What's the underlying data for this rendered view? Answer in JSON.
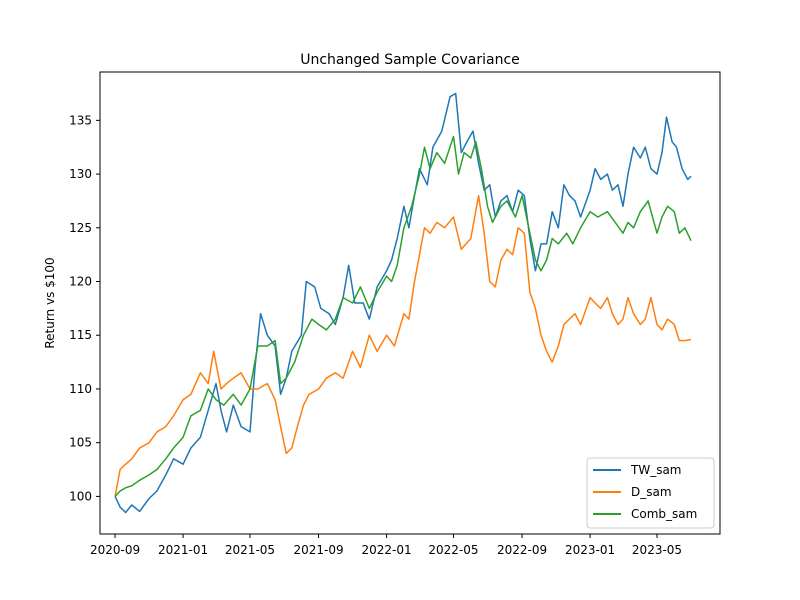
{
  "chart_data": {
    "type": "line",
    "title": "Unchanged Sample Covariance",
    "xlabel": "",
    "ylabel": "Return vs $100",
    "xlim": [
      "2020-08-05",
      "2023-08-22"
    ],
    "ylim": [
      96.5,
      139.5
    ],
    "x_ticks": [
      "2020-09",
      "2021-01",
      "2021-05",
      "2021-09",
      "2022-01",
      "2022-05",
      "2022-09",
      "2023-01",
      "2023-05"
    ],
    "y_ticks": [
      100,
      105,
      110,
      115,
      120,
      125,
      130,
      135
    ],
    "grid": false,
    "legend_position": "lower-right",
    "series": [
      {
        "name": "TW_sam",
        "color": "#1f77b4",
        "points": [
          [
            "2020-09-01",
            100.0
          ],
          [
            "2020-09-10",
            99.0
          ],
          [
            "2020-09-20",
            98.5
          ],
          [
            "2020-10-01",
            99.2
          ],
          [
            "2020-10-15",
            98.6
          ],
          [
            "2020-11-01",
            99.8
          ],
          [
            "2020-11-15",
            100.5
          ],
          [
            "2020-12-01",
            102.0
          ],
          [
            "2020-12-15",
            103.5
          ],
          [
            "2021-01-01",
            103.0
          ],
          [
            "2021-01-15",
            104.5
          ],
          [
            "2021-02-01",
            105.5
          ],
          [
            "2021-02-15",
            108.0
          ],
          [
            "2021-03-01",
            110.5
          ],
          [
            "2021-03-10",
            108.0
          ],
          [
            "2021-03-20",
            106.0
          ],
          [
            "2021-04-01",
            108.5
          ],
          [
            "2021-04-15",
            106.5
          ],
          [
            "2021-05-01",
            106.0
          ],
          [
            "2021-05-10",
            112.0
          ],
          [
            "2021-05-20",
            117.0
          ],
          [
            "2021-06-01",
            115.0
          ],
          [
            "2021-06-15",
            114.0
          ],
          [
            "2021-06-25",
            109.5
          ],
          [
            "2021-07-05",
            111.0
          ],
          [
            "2021-07-15",
            113.5
          ],
          [
            "2021-08-01",
            115.0
          ],
          [
            "2021-08-10",
            120.0
          ],
          [
            "2021-08-25",
            119.5
          ],
          [
            "2021-09-05",
            117.5
          ],
          [
            "2021-09-20",
            117.0
          ],
          [
            "2021-10-01",
            116.0
          ],
          [
            "2021-10-15",
            118.5
          ],
          [
            "2021-10-25",
            121.5
          ],
          [
            "2021-11-05",
            118.0
          ],
          [
            "2021-11-20",
            118.0
          ],
          [
            "2021-12-01",
            116.5
          ],
          [
            "2021-12-15",
            119.5
          ],
          [
            "2022-01-01",
            121.0
          ],
          [
            "2022-01-10",
            122.0
          ],
          [
            "2022-01-20",
            124.0
          ],
          [
            "2022-02-01",
            127.0
          ],
          [
            "2022-02-10",
            125.0
          ],
          [
            "2022-02-20",
            128.0
          ],
          [
            "2022-03-01",
            130.5
          ],
          [
            "2022-03-15",
            129.0
          ],
          [
            "2022-03-25",
            132.5
          ],
          [
            "2022-04-10",
            134.0
          ],
          [
            "2022-04-25",
            137.2
          ],
          [
            "2022-05-05",
            137.5
          ],
          [
            "2022-05-15",
            132.0
          ],
          [
            "2022-05-25",
            133.0
          ],
          [
            "2022-06-05",
            134.0
          ],
          [
            "2022-06-15",
            131.0
          ],
          [
            "2022-06-25",
            128.5
          ],
          [
            "2022-07-05",
            129.0
          ],
          [
            "2022-07-15",
            126.0
          ],
          [
            "2022-07-25",
            127.5
          ],
          [
            "2022-08-05",
            128.0
          ],
          [
            "2022-08-15",
            126.5
          ],
          [
            "2022-08-25",
            128.5
          ],
          [
            "2022-09-05",
            128.0
          ],
          [
            "2022-09-15",
            124.0
          ],
          [
            "2022-09-25",
            121.0
          ],
          [
            "2022-10-05",
            123.5
          ],
          [
            "2022-10-15",
            123.5
          ],
          [
            "2022-10-25",
            126.5
          ],
          [
            "2022-11-05",
            125.0
          ],
          [
            "2022-11-15",
            129.0
          ],
          [
            "2022-11-25",
            128.0
          ],
          [
            "2022-12-05",
            127.5
          ],
          [
            "2022-12-15",
            126.0
          ],
          [
            "2023-01-01",
            128.5
          ],
          [
            "2023-01-10",
            130.5
          ],
          [
            "2023-01-20",
            129.5
          ],
          [
            "2023-02-01",
            130.0
          ],
          [
            "2023-02-10",
            128.5
          ],
          [
            "2023-02-20",
            129.0
          ],
          [
            "2023-03-01",
            127.0
          ],
          [
            "2023-03-10",
            130.0
          ],
          [
            "2023-03-20",
            132.5
          ],
          [
            "2023-04-01",
            131.5
          ],
          [
            "2023-04-10",
            132.5
          ],
          [
            "2023-04-20",
            130.5
          ],
          [
            "2023-05-01",
            130.0
          ],
          [
            "2023-05-10",
            132.0
          ],
          [
            "2023-05-18",
            135.3
          ],
          [
            "2023-05-28",
            133.0
          ],
          [
            "2023-06-05",
            132.5
          ],
          [
            "2023-06-15",
            130.5
          ],
          [
            "2023-06-25",
            129.5
          ],
          [
            "2023-07-01",
            129.8
          ]
        ]
      },
      {
        "name": "D_sam",
        "color": "#ff7f0e",
        "points": [
          [
            "2020-09-01",
            100.0
          ],
          [
            "2020-09-10",
            102.5
          ],
          [
            "2020-09-20",
            103.0
          ],
          [
            "2020-10-01",
            103.5
          ],
          [
            "2020-10-15",
            104.5
          ],
          [
            "2020-11-01",
            105.0
          ],
          [
            "2020-11-15",
            106.0
          ],
          [
            "2020-12-01",
            106.5
          ],
          [
            "2020-12-15",
            107.5
          ],
          [
            "2021-01-01",
            109.0
          ],
          [
            "2021-01-15",
            109.5
          ],
          [
            "2021-02-01",
            111.5
          ],
          [
            "2021-02-15",
            110.5
          ],
          [
            "2021-02-25",
            113.5
          ],
          [
            "2021-03-10",
            110.0
          ],
          [
            "2021-03-20",
            110.5
          ],
          [
            "2021-04-01",
            111.0
          ],
          [
            "2021-04-15",
            111.5
          ],
          [
            "2021-05-01",
            110.0
          ],
          [
            "2021-05-15",
            110.0
          ],
          [
            "2021-06-01",
            110.5
          ],
          [
            "2021-06-15",
            109.0
          ],
          [
            "2021-06-25",
            106.5
          ],
          [
            "2021-07-05",
            104.0
          ],
          [
            "2021-07-15",
            104.5
          ],
          [
            "2021-07-25",
            106.5
          ],
          [
            "2021-08-05",
            108.5
          ],
          [
            "2021-08-15",
            109.5
          ],
          [
            "2021-09-01",
            110.0
          ],
          [
            "2021-09-15",
            111.0
          ],
          [
            "2021-10-01",
            111.5
          ],
          [
            "2021-10-15",
            111.0
          ],
          [
            "2021-11-01",
            113.5
          ],
          [
            "2021-11-15",
            112.0
          ],
          [
            "2021-12-01",
            115.0
          ],
          [
            "2021-12-15",
            113.5
          ],
          [
            "2022-01-01",
            115.0
          ],
          [
            "2022-01-15",
            114.0
          ],
          [
            "2022-02-01",
            117.0
          ],
          [
            "2022-02-10",
            116.5
          ],
          [
            "2022-02-20",
            120.0
          ],
          [
            "2022-03-01",
            122.5
          ],
          [
            "2022-03-10",
            125.0
          ],
          [
            "2022-03-20",
            124.5
          ],
          [
            "2022-04-01",
            125.5
          ],
          [
            "2022-04-15",
            125.0
          ],
          [
            "2022-05-01",
            126.0
          ],
          [
            "2022-05-15",
            123.0
          ],
          [
            "2022-06-01",
            124.0
          ],
          [
            "2022-06-15",
            128.0
          ],
          [
            "2022-06-25",
            124.5
          ],
          [
            "2022-07-05",
            120.0
          ],
          [
            "2022-07-15",
            119.5
          ],
          [
            "2022-07-25",
            122.0
          ],
          [
            "2022-08-05",
            123.0
          ],
          [
            "2022-08-15",
            122.5
          ],
          [
            "2022-08-25",
            125.0
          ],
          [
            "2022-09-05",
            124.5
          ],
          [
            "2022-09-15",
            119.0
          ],
          [
            "2022-09-25",
            117.5
          ],
          [
            "2022-10-05",
            115.0
          ],
          [
            "2022-10-15",
            113.5
          ],
          [
            "2022-10-25",
            112.5
          ],
          [
            "2022-11-05",
            114.0
          ],
          [
            "2022-11-15",
            116.0
          ],
          [
            "2022-11-25",
            116.5
          ],
          [
            "2022-12-05",
            117.0
          ],
          [
            "2022-12-15",
            116.0
          ],
          [
            "2023-01-01",
            118.5
          ],
          [
            "2023-01-10",
            118.0
          ],
          [
            "2023-01-20",
            117.5
          ],
          [
            "2023-02-01",
            118.5
          ],
          [
            "2023-02-10",
            117.0
          ],
          [
            "2023-02-20",
            116.0
          ],
          [
            "2023-03-01",
            116.5
          ],
          [
            "2023-03-10",
            118.5
          ],
          [
            "2023-03-20",
            117.0
          ],
          [
            "2023-04-01",
            116.0
          ],
          [
            "2023-04-10",
            116.5
          ],
          [
            "2023-04-20",
            118.5
          ],
          [
            "2023-05-01",
            116.0
          ],
          [
            "2023-05-10",
            115.5
          ],
          [
            "2023-05-20",
            116.5
          ],
          [
            "2023-06-01",
            116.0
          ],
          [
            "2023-06-10",
            114.5
          ],
          [
            "2023-06-20",
            114.5
          ],
          [
            "2023-07-01",
            114.6
          ]
        ]
      },
      {
        "name": "Comb_sam",
        "color": "#2ca02c",
        "points": [
          [
            "2020-09-01",
            100.0
          ],
          [
            "2020-09-10",
            100.5
          ],
          [
            "2020-09-20",
            100.8
          ],
          [
            "2020-10-01",
            101.0
          ],
          [
            "2020-10-15",
            101.5
          ],
          [
            "2020-11-01",
            102.0
          ],
          [
            "2020-11-15",
            102.5
          ],
          [
            "2020-12-01",
            103.5
          ],
          [
            "2020-12-15",
            104.5
          ],
          [
            "2021-01-01",
            105.5
          ],
          [
            "2021-01-15",
            107.5
          ],
          [
            "2021-02-01",
            108.0
          ],
          [
            "2021-02-15",
            110.0
          ],
          [
            "2021-03-01",
            109.0
          ],
          [
            "2021-03-15",
            108.5
          ],
          [
            "2021-04-01",
            109.5
          ],
          [
            "2021-04-15",
            108.5
          ],
          [
            "2021-05-01",
            110.0
          ],
          [
            "2021-05-15",
            114.0
          ],
          [
            "2021-06-01",
            114.0
          ],
          [
            "2021-06-15",
            114.5
          ],
          [
            "2021-06-25",
            110.5
          ],
          [
            "2021-07-05",
            111.0
          ],
          [
            "2021-07-20",
            112.5
          ],
          [
            "2021-08-05",
            115.0
          ],
          [
            "2021-08-20",
            116.5
          ],
          [
            "2021-09-01",
            116.0
          ],
          [
            "2021-09-15",
            115.5
          ],
          [
            "2021-10-01",
            116.5
          ],
          [
            "2021-10-15",
            118.5
          ],
          [
            "2021-11-01",
            118.0
          ],
          [
            "2021-11-15",
            119.5
          ],
          [
            "2021-12-01",
            117.5
          ],
          [
            "2021-12-15",
            119.0
          ],
          [
            "2022-01-01",
            120.5
          ],
          [
            "2022-01-10",
            120.0
          ],
          [
            "2022-01-20",
            121.5
          ],
          [
            "2022-02-01",
            125.0
          ],
          [
            "2022-02-15",
            127.0
          ],
          [
            "2022-03-01",
            130.0
          ],
          [
            "2022-03-10",
            132.5
          ],
          [
            "2022-03-20",
            130.5
          ],
          [
            "2022-04-01",
            132.0
          ],
          [
            "2022-04-15",
            131.0
          ],
          [
            "2022-05-01",
            133.5
          ],
          [
            "2022-05-10",
            130.0
          ],
          [
            "2022-05-20",
            132.0
          ],
          [
            "2022-06-01",
            131.5
          ],
          [
            "2022-06-10",
            133.0
          ],
          [
            "2022-06-20",
            130.5
          ],
          [
            "2022-07-01",
            127.0
          ],
          [
            "2022-07-10",
            125.5
          ],
          [
            "2022-07-25",
            127.0
          ],
          [
            "2022-08-05",
            127.5
          ],
          [
            "2022-08-20",
            126.0
          ],
          [
            "2022-09-01",
            128.0
          ],
          [
            "2022-09-15",
            124.5
          ],
          [
            "2022-09-25",
            122.0
          ],
          [
            "2022-10-05",
            121.0
          ],
          [
            "2022-10-15",
            122.0
          ],
          [
            "2022-10-25",
            124.0
          ],
          [
            "2022-11-05",
            123.5
          ],
          [
            "2022-11-20",
            124.5
          ],
          [
            "2022-12-01",
            123.5
          ],
          [
            "2022-12-15",
            125.0
          ],
          [
            "2023-01-01",
            126.5
          ],
          [
            "2023-01-15",
            126.0
          ],
          [
            "2023-02-01",
            126.5
          ],
          [
            "2023-02-15",
            125.5
          ],
          [
            "2023-03-01",
            124.5
          ],
          [
            "2023-03-10",
            125.5
          ],
          [
            "2023-03-20",
            125.0
          ],
          [
            "2023-04-01",
            126.5
          ],
          [
            "2023-04-15",
            127.5
          ],
          [
            "2023-05-01",
            124.5
          ],
          [
            "2023-05-10",
            126.0
          ],
          [
            "2023-05-20",
            127.0
          ],
          [
            "2023-06-01",
            126.5
          ],
          [
            "2023-06-10",
            124.5
          ],
          [
            "2023-06-20",
            125.0
          ],
          [
            "2023-07-01",
            123.8
          ]
        ]
      }
    ]
  }
}
